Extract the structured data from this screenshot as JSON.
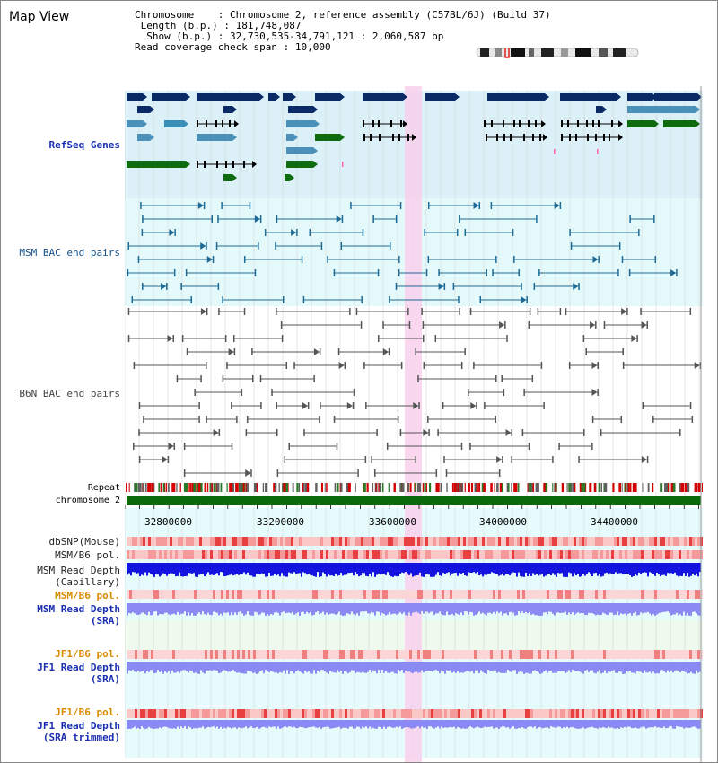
{
  "page": {
    "title": "Map View"
  },
  "info": {
    "chromosome_key": "Chromosome",
    "chromosome_val": "Chromosome 2, reference assembly (C57BL/6J) (Build 37)",
    "length_key": "Length (b.p.)",
    "length_val": "181,748,087",
    "show_key": "Show (b.p.)",
    "show_val": "32,730,535-34,791,121 : 2,060,587 bp",
    "span_key": "Read coverage check span",
    "span_val": "10,000"
  },
  "tracks": {
    "refseq": "RefSeq Genes",
    "msm_bac": "MSM BAC end pairs",
    "b6n_bac": "B6N BAC end pairs",
    "repeat": "Repeat",
    "chromosome": "chromosome 2",
    "dbsnp": "dbSNP(Mouse)",
    "msm_b6_pol": "MSM/B6 pol.",
    "msm_rd_cap_1": "MSM Read Depth",
    "msm_rd_cap_2": "(Capillary)",
    "msm_b6_pol2": "MSM/B6 pol.",
    "msm_rd_sra_1": "MSM Read Depth",
    "msm_rd_sra_2": "(SRA)",
    "jf1_b6_pol": "JF1/B6 pol.",
    "jf1_rd_1": "JF1 Read Depth",
    "jf1_rd_2": "(SRA)",
    "jf1_b6_pol2": "JF1/B6 pol.",
    "jf1_rdt_1": "JF1 Read Depth",
    "jf1_rdt_2": "(SRA trimmed)"
  },
  "axis": {
    "ticks": [
      "32800000",
      "33200000",
      "33600000",
      "34000000",
      "34400000"
    ]
  },
  "colors": {
    "refseq_bg": "#dcf0f8",
    "bac_bg": "#e4fafa",
    "navy": "#0a2a66",
    "steel": "#4a90b8",
    "green": "#0e6b0e",
    "highlight": "#f8d0ec",
    "depth_blue": "#1414e0",
    "depth_lav": "#8a8af2"
  }
}
